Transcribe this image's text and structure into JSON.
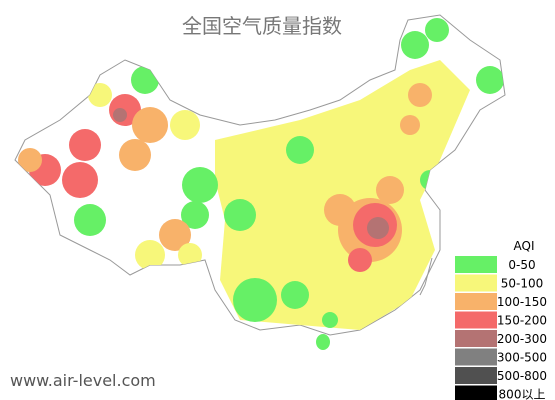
{
  "title": "全国空气质量指数",
  "legend": {
    "title": "AQI",
    "items": [
      {
        "label": "0-50",
        "color": "#66f066"
      },
      {
        "label": "50-100",
        "color": "#f7f77a"
      },
      {
        "label": "100-150",
        "color": "#f8b26a"
      },
      {
        "label": "150-200",
        "color": "#f46a6a"
      },
      {
        "label": "200-300",
        "color": "#b47373"
      },
      {
        "label": "300-500",
        "color": "#808080"
      },
      {
        "label": "500-800",
        "color": "#505050"
      },
      {
        "label": "800以上",
        "color": "#000000"
      }
    ]
  },
  "footer": "www.air-level.com"
}
